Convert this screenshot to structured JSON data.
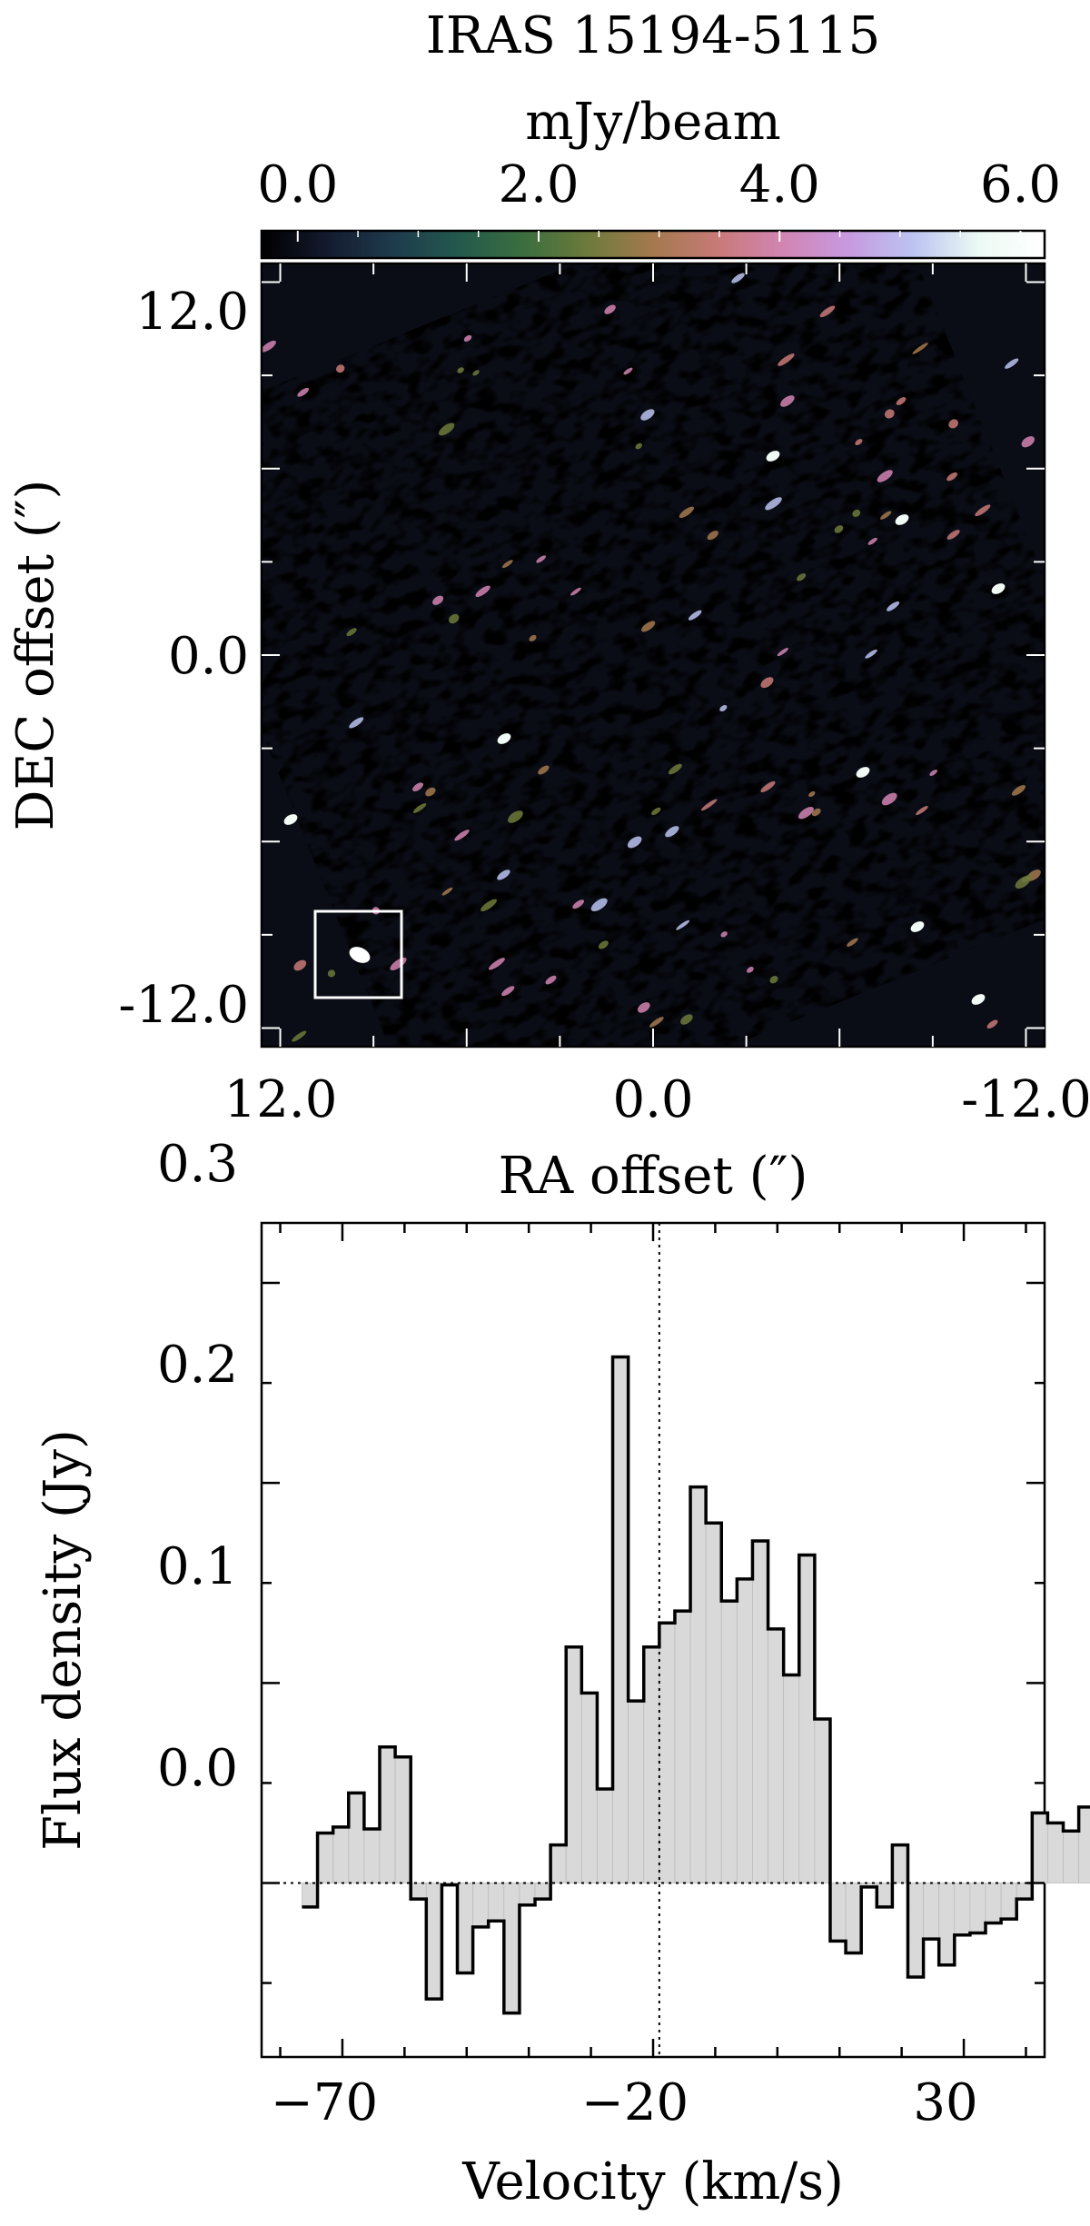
{
  "figure": {
    "title": "IRAS 15194-5115"
  },
  "colorbar": {
    "label": "mJy/beam",
    "ticks": [
      "0.0",
      "2.0",
      "4.0",
      "6.0"
    ],
    "range": [
      -0.3,
      6.2
    ],
    "colormap": [
      "#000000",
      "#141a2e",
      "#1e3a4c",
      "#23584e",
      "#3a6e3e",
      "#6d7a3c",
      "#a4794e",
      "#c87a78",
      "#d285b3",
      "#c79ae0",
      "#bcc4f1",
      "#ecfaf4",
      "#ffffff"
    ]
  },
  "chart_data": [
    {
      "type": "heatmap",
      "xlabel": "RA offset (″)",
      "ylabel": "DEC offset (″)",
      "xlim": [
        12.6,
        -12.6
      ],
      "ylim": [
        -12.6,
        12.6
      ],
      "x_ticks": [
        "12.0",
        "0.0",
        "-12.0"
      ],
      "y_ticks": [
        "12.0",
        "0.0",
        "-12.0"
      ],
      "beam_box": true
    },
    {
      "type": "bar",
      "xlabel": "Velocity (km/s)",
      "ylabel": "Flux density (Jy)",
      "xlim": [
        -83,
        43
      ],
      "ylim": [
        -0.087,
        0.33
      ],
      "x_ticks": [
        "−70",
        "−20",
        "30"
      ],
      "y_ticks": [
        "0.0",
        "0.1",
        "0.2",
        "0.3"
      ],
      "vline_x": -19,
      "hline_y": 0.0,
      "channel_width": 2.5,
      "bin_start": -76.5,
      "values": [
        -0.012,
        0.025,
        0.028,
        0.045,
        0.027,
        0.068,
        0.063,
        -0.008,
        -0.058,
        -0.001,
        -0.045,
        -0.022,
        -0.019,
        -0.065,
        -0.011,
        -0.008,
        0.019,
        0.118,
        0.095,
        0.047,
        0.263,
        0.091,
        0.118,
        0.13,
        0.136,
        0.198,
        0.18,
        0.141,
        0.152,
        0.171,
        0.127,
        0.104,
        0.164,
        0.082,
        -0.029,
        -0.035,
        -0.002,
        -0.012,
        0.019,
        -0.047,
        -0.028,
        -0.041,
        -0.026,
        -0.025,
        -0.02,
        -0.018,
        -0.008,
        0.035,
        0.03,
        0.026,
        0.038
      ]
    }
  ]
}
